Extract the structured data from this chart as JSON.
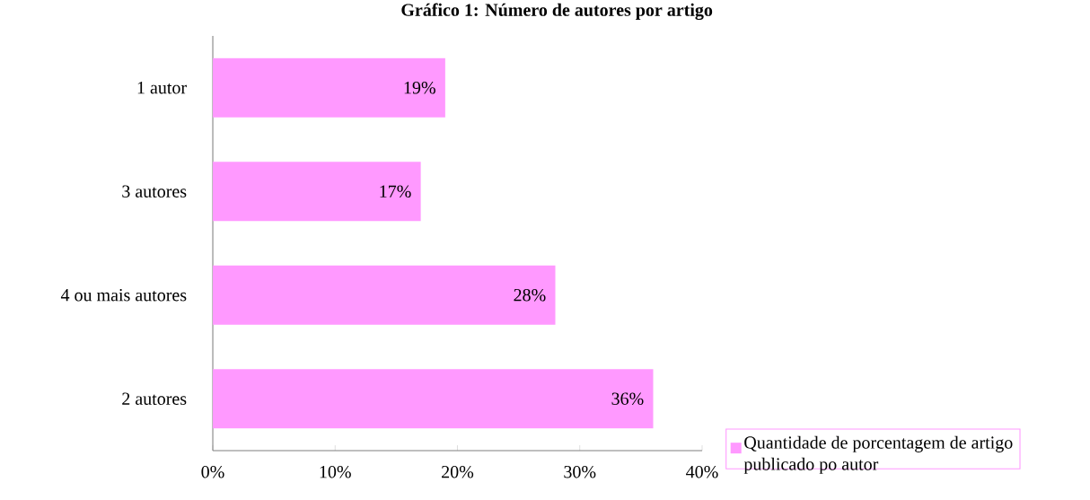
{
  "chart_data": {
    "type": "bar",
    "orientation": "horizontal",
    "title": "Gráfico 1: Número de autores por artigo",
    "categories": [
      "1 autor",
      "3 autores",
      "4 ou mais autores",
      "2 autores"
    ],
    "series": [
      {
        "name": "Quantidade de porcentagem de artigo publicado po autor",
        "color": "#ff99ff",
        "values": [
          19,
          17,
          28,
          36
        ],
        "value_labels": [
          "19%",
          "17%",
          "28%",
          "36%"
        ]
      }
    ],
    "xlim": [
      0,
      40
    ],
    "xticks": [
      {
        "value": 0,
        "label": "0%"
      },
      {
        "value": 10,
        "label": "10%"
      },
      {
        "value": 20,
        "label": "20%"
      },
      {
        "value": 30,
        "label": "30%"
      },
      {
        "value": 40,
        "label": "40%"
      }
    ],
    "grid": false,
    "legend": "bottom right"
  }
}
